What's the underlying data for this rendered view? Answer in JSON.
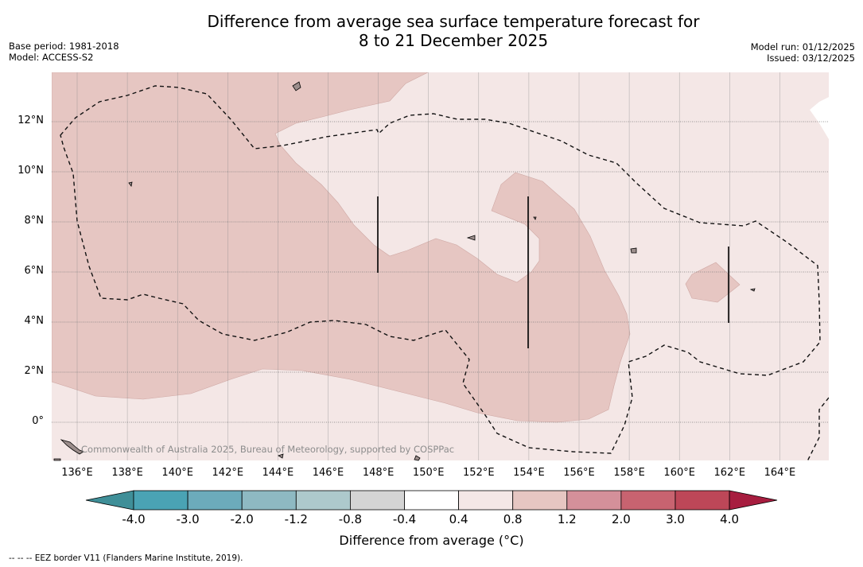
{
  "title": {
    "line1": "Difference from average sea surface temperature forecast for",
    "line2": "8 to 21 December 2025"
  },
  "meta": {
    "base_period": "Base period: 1981-2018",
    "model": "Model: ACCESS-S2",
    "model_run": "Model run: 01/12/2025",
    "issued": "Issued: 03/12/2025"
  },
  "map": {
    "lon_labels": [
      "136°E",
      "138°E",
      "140°E",
      "142°E",
      "144°E",
      "146°E",
      "148°E",
      "150°E",
      "152°E",
      "154°E",
      "156°E",
      "158°E",
      "160°E",
      "162°E",
      "164°E"
    ],
    "lat_labels": [
      "12°N",
      "10°N",
      "8°N",
      "6°N",
      "4°N",
      "2°N",
      "0°"
    ],
    "copyright": "Commonwealth of Australia 2025, Bureau of Meteorology, supported by COSPPac",
    "colors": {
      "band_0p4_0p8": "#f4e7e6",
      "band_0p8_1p2": "#e6c6c2",
      "land": "#9c8e8c"
    }
  },
  "colorbar": {
    "labels": [
      "-4.0",
      "-3.0",
      "-2.0",
      "-1.2",
      "-0.8",
      "-0.4",
      "0.4",
      "0.8",
      "1.2",
      "2.0",
      "3.0",
      "4.0"
    ],
    "colors": [
      "#3f8f98",
      "#4aa3b4",
      "#6cabbb",
      "#8eb9c2",
      "#adc9cc",
      "#d4d4d4",
      "#ffffff",
      "#f4e7e6",
      "#e6c6c2",
      "#d4909a",
      "#c86370",
      "#bd4758",
      "#a71d3f"
    ],
    "title": "Difference from average (°C)"
  },
  "footnote": "--  --  -- EEZ border V11 (Flanders Marine Institute, 2019)."
}
